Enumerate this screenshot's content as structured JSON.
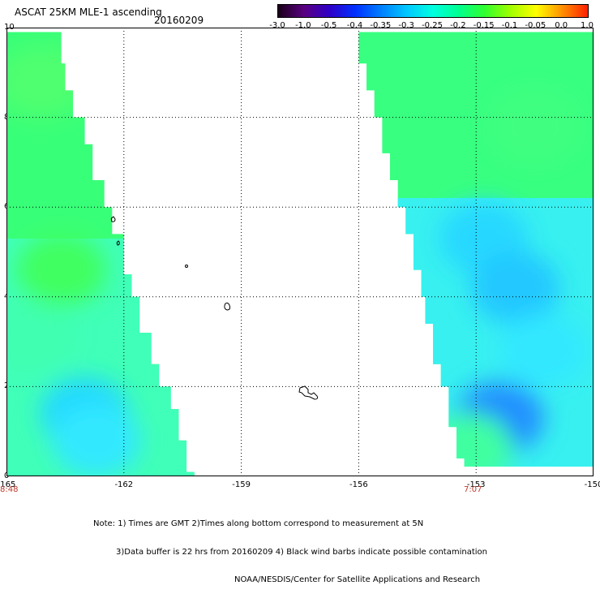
{
  "title": "ASCAT 25KM MLE-1 ascending",
  "date": "20160209",
  "colorbar": {
    "labels": [
      "-3.0",
      "-1.0",
      "-0.5",
      "-0.4",
      "-0.35",
      "-0.3",
      "-0.25",
      "-0.2",
      "-0.15",
      "-0.1",
      "-0.05",
      "0.0",
      "1.0"
    ],
    "colors": [
      "#1a0018",
      "#5a0080",
      "#2e00c8",
      "#0030ff",
      "#0080ff",
      "#00c8ff",
      "#00ffe0",
      "#00ff90",
      "#30ff30",
      "#a0ff00",
      "#ffff00",
      "#ff9000",
      "#ff2000"
    ]
  },
  "axes": {
    "x_ticks": [
      "-165",
      "-162",
      "-159",
      "-156",
      "-153",
      "-150"
    ],
    "y_ticks": [
      "0",
      "2",
      "4",
      "6",
      "8",
      "10"
    ],
    "xlim": [
      -165,
      -150
    ],
    "ylim": [
      0,
      10
    ],
    "grid": true
  },
  "times": [
    "8:48",
    "7:07"
  ],
  "notes": [
    "Note: 1) Times are GMT 2)Times along bottom correspond to measurement at 5N",
    "3)Data buffer is 22 hrs from 20160209 4) Black wind barbs indicate possible contamination",
    "NOAA/NESDIS/Center for Satellite Applications and Research"
  ],
  "swaths": {
    "west": {
      "lon_left": -165,
      "edge": [
        [
          0.1,
          -160.2
        ],
        [
          0.8,
          -160.4
        ],
        [
          1.5,
          -160.6
        ],
        [
          2.0,
          -160.8
        ],
        [
          2.5,
          -161.1
        ],
        [
          3.2,
          -161.3
        ],
        [
          4.0,
          -161.6
        ],
        [
          4.5,
          -161.8
        ],
        [
          5.4,
          -162.0
        ],
        [
          6.0,
          -162.3
        ],
        [
          6.6,
          -162.5
        ],
        [
          7.4,
          -162.8
        ],
        [
          8.0,
          -163.0
        ],
        [
          8.6,
          -163.3
        ],
        [
          9.2,
          -163.5
        ],
        [
          9.9,
          -163.6
        ]
      ]
    },
    "east": {
      "lon_right": -150,
      "edge": [
        [
          0.4,
          -153.3
        ],
        [
          1.1,
          -153.5
        ],
        [
          2.0,
          -153.7
        ],
        [
          2.5,
          -153.9
        ],
        [
          3.4,
          -154.1
        ],
        [
          4.0,
          -154.3
        ],
        [
          4.6,
          -154.4
        ],
        [
          5.4,
          -154.6
        ],
        [
          6.0,
          -154.8
        ],
        [
          6.6,
          -155.0
        ],
        [
          7.2,
          -155.2
        ],
        [
          8.0,
          -155.4
        ],
        [
          8.6,
          -155.6
        ],
        [
          9.2,
          -155.8
        ],
        [
          9.9,
          -156.0
        ]
      ]
    },
    "patches": [
      {
        "lon": -163.0,
        "lat": 1.4,
        "color": "#22d8ff"
      },
      {
        "lon": -162.7,
        "lat": 0.8,
        "color": "#30e8ff"
      },
      {
        "lon": -164.4,
        "lat": 3.2,
        "color": "#40ffb0"
      },
      {
        "lon": -163.6,
        "lat": 4.6,
        "color": "#40ff60"
      },
      {
        "lon": -164.1,
        "lat": 8.8,
        "color": "#50ff70"
      },
      {
        "lon": -152.8,
        "lat": 5.3,
        "color": "#28d8ff"
      },
      {
        "lon": -152.0,
        "lat": 4.2,
        "color": "#20c8ff"
      },
      {
        "lon": -152.4,
        "lat": 1.3,
        "color": "#2090ff"
      },
      {
        "lon": -151.3,
        "lat": 2.8,
        "color": "#30e8ff"
      },
      {
        "lon": -151.5,
        "lat": 7.8,
        "color": "#40ff80"
      },
      {
        "lon": -153.2,
        "lat": 0.6,
        "color": "#40ffa0"
      }
    ]
  }
}
